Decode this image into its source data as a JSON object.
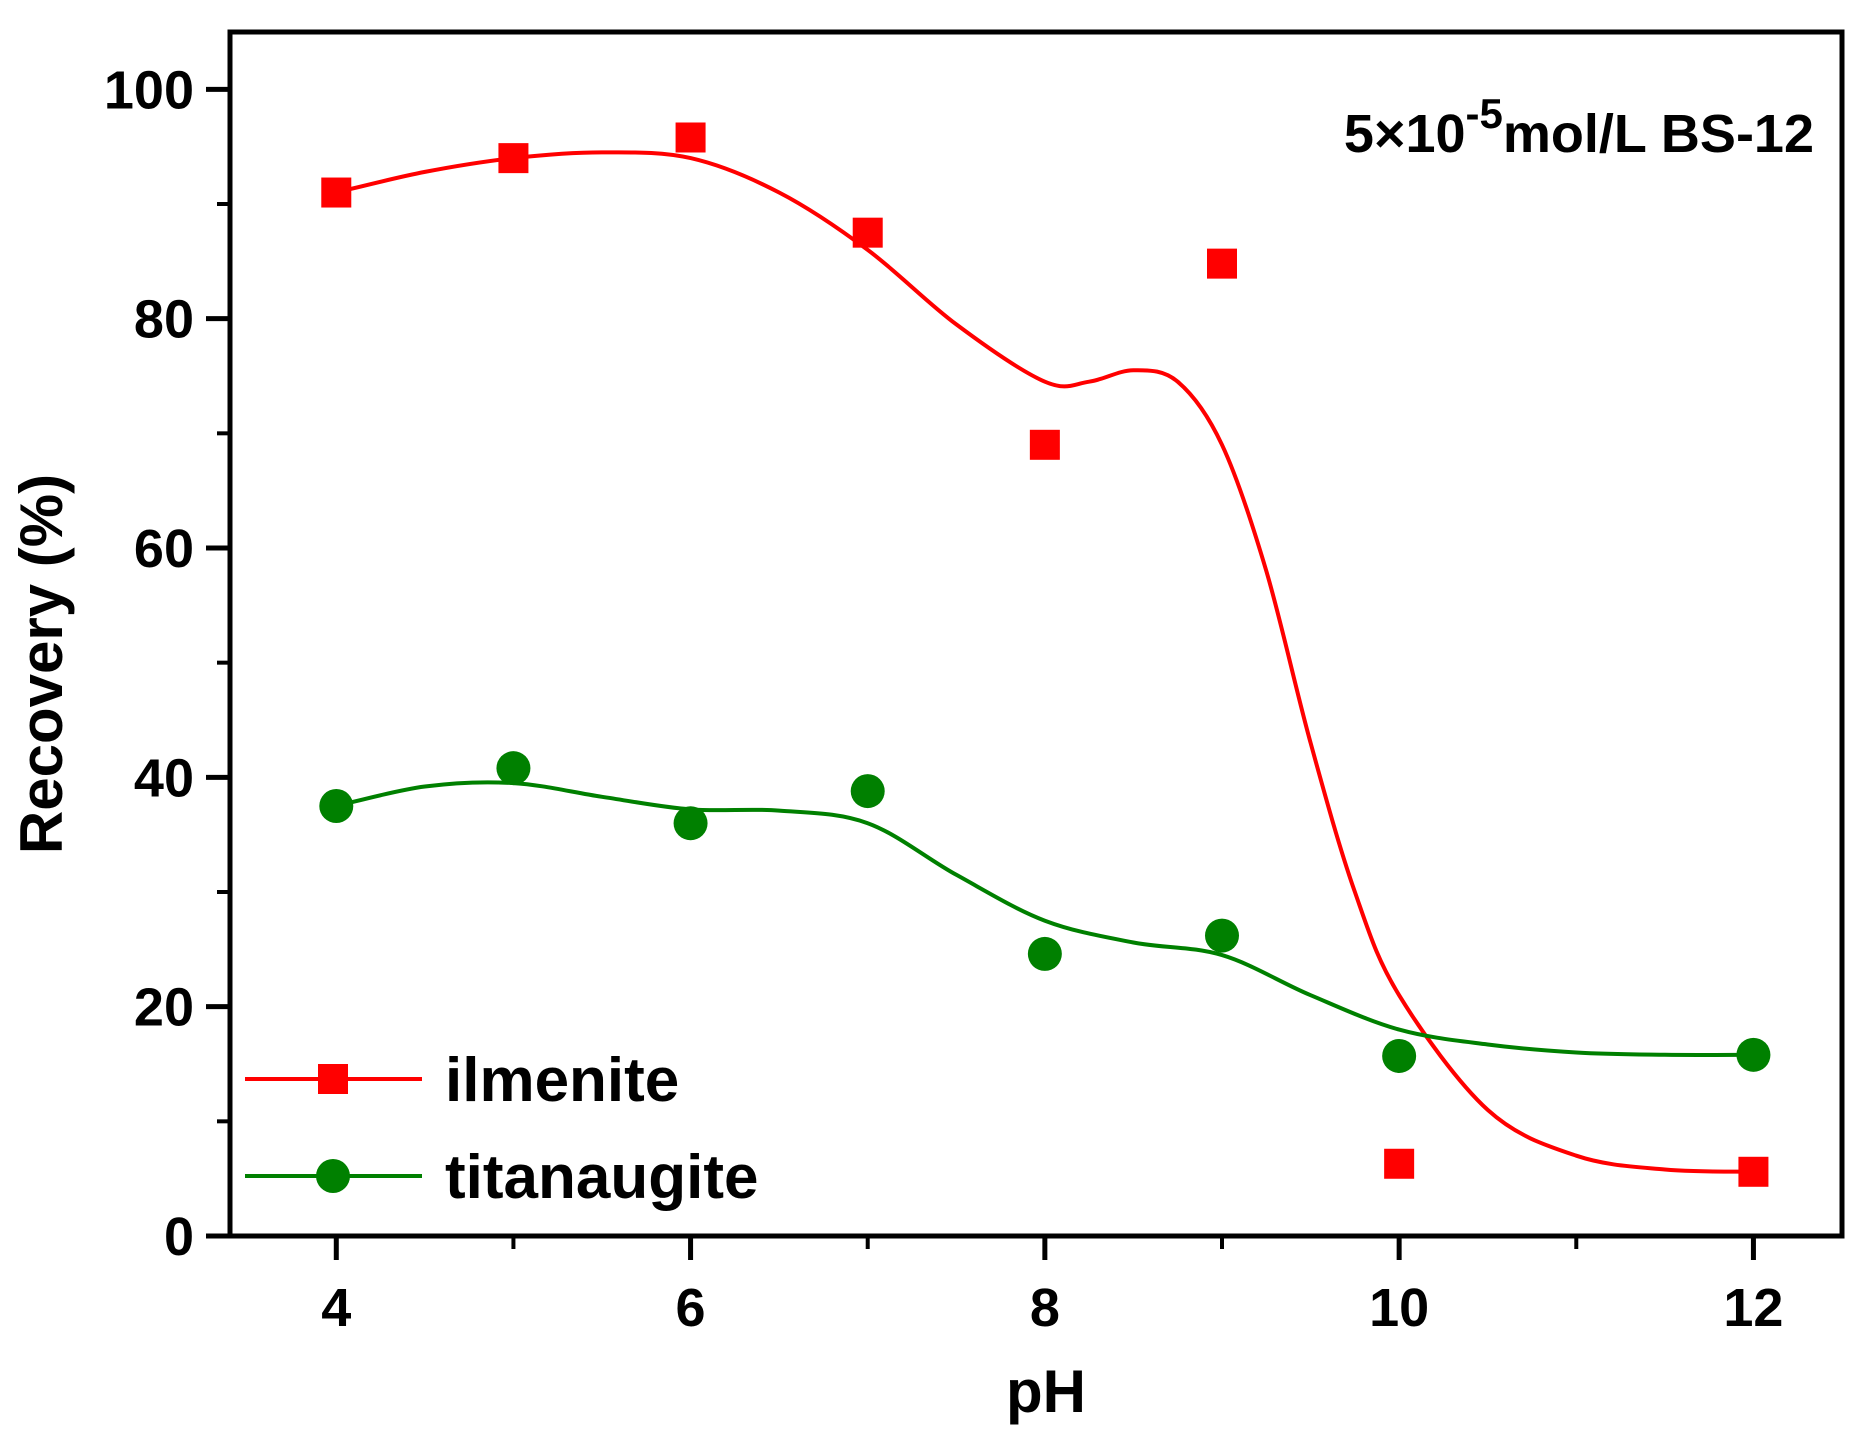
{
  "chart_data": {
    "type": "scatter",
    "title": "",
    "xlabel": "pH",
    "ylabel": "Recovery (%)",
    "xlim": [
      3.4,
      12.5
    ],
    "ylim": [
      0,
      105
    ],
    "xticks": [
      4,
      6,
      8,
      10,
      12
    ],
    "xtick_labels": [
      "4",
      "6",
      "8",
      "10",
      "12"
    ],
    "xminor": [
      5,
      7,
      9,
      11
    ],
    "yticks": [
      0,
      20,
      40,
      60,
      80,
      100
    ],
    "ytick_labels": [
      "0",
      "20",
      "40",
      "60",
      "80",
      "100"
    ],
    "yminor": [
      10,
      30,
      50,
      70,
      90
    ],
    "grid": false,
    "legend_position": "bottom-left",
    "annotation": {
      "prefix": "5×10",
      "exponent": "-5",
      "suffix": "mol/L BS-12"
    },
    "series": [
      {
        "name": "ilmenite",
        "color": "#ff0000",
        "marker": "square",
        "points": [
          {
            "x": 4,
            "y": 91
          },
          {
            "x": 5,
            "y": 94
          },
          {
            "x": 6,
            "y": 95.8
          },
          {
            "x": 7,
            "y": 87.5
          },
          {
            "x": 8,
            "y": 69
          },
          {
            "x": 9,
            "y": 84.8
          },
          {
            "x": 10,
            "y": 6.3
          },
          {
            "x": 12,
            "y": 5.6
          }
        ],
        "fit_curve": [
          [
            4,
            91
          ],
          [
            4.5,
            92.8
          ],
          [
            5,
            94
          ],
          [
            5.5,
            94.5
          ],
          [
            6,
            94
          ],
          [
            6.5,
            91
          ],
          [
            7,
            86
          ],
          [
            7.5,
            79.5
          ],
          [
            8,
            74.5
          ],
          [
            8.25,
            74.5
          ],
          [
            8.5,
            75.5
          ],
          [
            8.75,
            74.5
          ],
          [
            9,
            69
          ],
          [
            9.25,
            58
          ],
          [
            9.5,
            43
          ],
          [
            9.75,
            30
          ],
          [
            10,
            21
          ],
          [
            10.5,
            11
          ],
          [
            11,
            7
          ],
          [
            11.5,
            5.8
          ],
          [
            12,
            5.6
          ]
        ]
      },
      {
        "name": "titanaugite",
        "color": "#008000",
        "marker": "circle",
        "points": [
          {
            "x": 4,
            "y": 37.5
          },
          {
            "x": 5,
            "y": 40.8
          },
          {
            "x": 6,
            "y": 36
          },
          {
            "x": 7,
            "y": 38.8
          },
          {
            "x": 8,
            "y": 24.6
          },
          {
            "x": 9,
            "y": 26.2
          },
          {
            "x": 10,
            "y": 15.7
          },
          {
            "x": 12,
            "y": 15.8
          }
        ],
        "fit_curve": [
          [
            4,
            37.5
          ],
          [
            4.5,
            39.2
          ],
          [
            5,
            39.5
          ],
          [
            5.5,
            38.3
          ],
          [
            6,
            37.2
          ],
          [
            6.5,
            37.1
          ],
          [
            7,
            36
          ],
          [
            7.5,
            31.5
          ],
          [
            8,
            27.5
          ],
          [
            8.5,
            25.6
          ],
          [
            9,
            24.5
          ],
          [
            9.5,
            21
          ],
          [
            10,
            18
          ],
          [
            10.5,
            16.7
          ],
          [
            11,
            16
          ],
          [
            11.5,
            15.8
          ],
          [
            12,
            15.8
          ]
        ]
      }
    ]
  }
}
